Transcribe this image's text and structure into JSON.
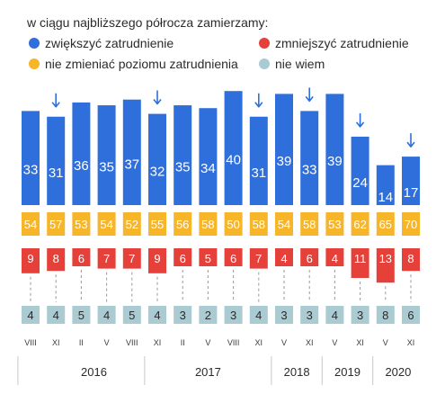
{
  "chart_data": {
    "type": "bar",
    "title": "w ciągu najbliższego półrocza zamierzamy:",
    "categories": [
      "VIII",
      "XI",
      "II",
      "V",
      "VIII",
      "XI",
      "II",
      "V",
      "VIII",
      "XI",
      "V",
      "XI",
      "V",
      "XI",
      "V",
      "XI"
    ],
    "years": [
      {
        "label": "2016",
        "from": 1,
        "to": 4
      },
      {
        "label": "2017",
        "from": 5,
        "to": 9
      },
      {
        "label": "2018",
        "from": 10,
        "to": 11
      },
      {
        "label": "2019",
        "from": 12,
        "to": 13
      },
      {
        "label": "2020",
        "from": 14,
        "to": 15
      }
    ],
    "series": [
      {
        "name": "zwiększyć zatrudnienie",
        "color": "#2f6fdb",
        "values": [
          33,
          31,
          36,
          35,
          37,
          32,
          35,
          34,
          40,
          31,
          39,
          33,
          39,
          24,
          14,
          17
        ]
      },
      {
        "name": "nie zmieniać poziomu zatrudnienia",
        "color": "#f7b52a",
        "values": [
          54,
          57,
          53,
          54,
          52,
          55,
          56,
          58,
          50,
          58,
          54,
          58,
          53,
          62,
          65,
          70
        ]
      },
      {
        "name": "zmniejszyć zatrudnienie",
        "color": "#e5413a",
        "values": [
          9,
          8,
          6,
          7,
          7,
          9,
          6,
          5,
          6,
          7,
          4,
          6,
          4,
          11,
          13,
          8
        ]
      },
      {
        "name": "nie wiem",
        "color": "#a9cbd1",
        "values": [
          4,
          4,
          5,
          4,
          5,
          4,
          3,
          2,
          3,
          4,
          3,
          3,
          4,
          3,
          8,
          6
        ]
      }
    ],
    "arrows_down": [
      1,
      5,
      9,
      11,
      13,
      15
    ],
    "arrow_color": "#2f6fdb",
    "legend_placement": "top",
    "grid": false
  }
}
